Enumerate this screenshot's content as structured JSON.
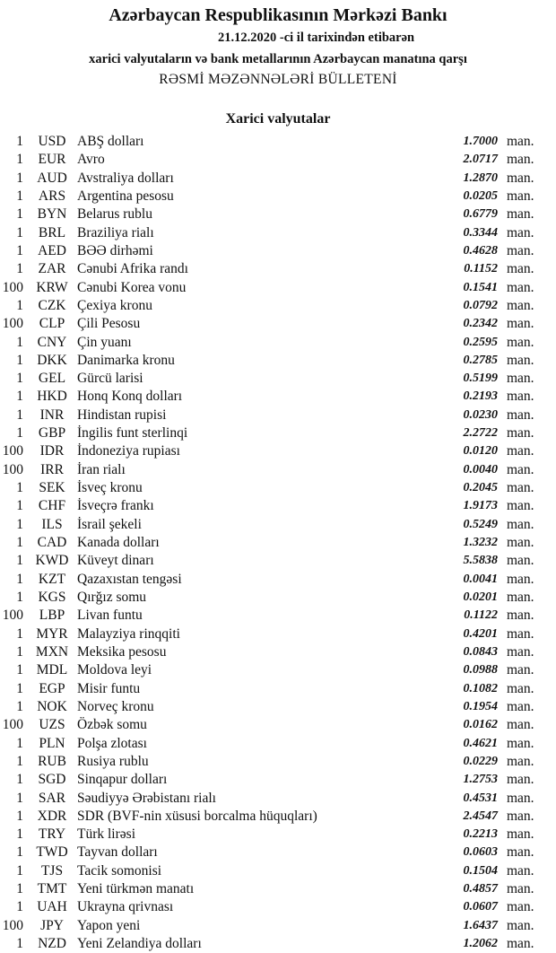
{
  "header": {
    "bank": "Azərbaycan Respublikasının Mərkəzi Bankı",
    "date_line": "21.12.2020  -ci il tarixindən etibarən",
    "subtitle": "xarici valyutaların və bank metallarının Azərbaycan manatına qarşı",
    "bulletin": "RƏSMİ MƏZƏNNƏLƏRİ BÜLLETENİ",
    "section": "Xarici valyutalar"
  },
  "unit": "man.",
  "rows": [
    {
      "amount": "1",
      "code": "USD",
      "name": "ABŞ dolları",
      "rate": "1.7000"
    },
    {
      "amount": "1",
      "code": "EUR",
      "name": "Avro",
      "rate": "2.0717"
    },
    {
      "amount": "1",
      "code": "AUD",
      "name": "Avstraliya dolları",
      "rate": "1.2870"
    },
    {
      "amount": "1",
      "code": "ARS",
      "name": "Argentina pesosu",
      "rate": "0.0205"
    },
    {
      "amount": "1",
      "code": "BYN",
      "name": "Belarus rublu",
      "rate": "0.6779"
    },
    {
      "amount": "1",
      "code": "BRL",
      "name": "Braziliya rialı",
      "rate": "0.3344"
    },
    {
      "amount": "1",
      "code": "AED",
      "name": "BƏƏ dirhəmi",
      "rate": "0.4628"
    },
    {
      "amount": "1",
      "code": "ZAR",
      "name": "Cənubi Afrika randı",
      "rate": "0.1152"
    },
    {
      "amount": "100",
      "code": "KRW",
      "name": "Cənubi Korea vonu",
      "rate": "0.1541"
    },
    {
      "amount": "1",
      "code": "CZK",
      "name": "Çexiya kronu",
      "rate": "0.0792"
    },
    {
      "amount": "100",
      "code": "CLP",
      "name": "Çili Pesosu",
      "rate": "0.2342"
    },
    {
      "amount": "1",
      "code": "CNY",
      "name": "Çin yuanı",
      "rate": "0.2595"
    },
    {
      "amount": "1",
      "code": "DKK",
      "name": "Danimarka kronu",
      "rate": "0.2785"
    },
    {
      "amount": "1",
      "code": "GEL",
      "name": "Gürcü larisi",
      "rate": "0.5199"
    },
    {
      "amount": "1",
      "code": "HKD",
      "name": "Honq Konq dolları",
      "rate": "0.2193"
    },
    {
      "amount": "1",
      "code": "INR",
      "name": "Hindistan rupisi",
      "rate": "0.0230"
    },
    {
      "amount": "1",
      "code": "GBP",
      "name": "İngilis funt sterlinqi",
      "rate": "2.2722"
    },
    {
      "amount": "100",
      "code": "IDR",
      "name": "İndoneziya rupiası",
      "rate": "0.0120"
    },
    {
      "amount": "100",
      "code": "IRR",
      "name": "İran rialı",
      "rate": "0.0040"
    },
    {
      "amount": "1",
      "code": "SEK",
      "name": "İsveç kronu",
      "rate": "0.2045"
    },
    {
      "amount": "1",
      "code": "CHF",
      "name": "İsveçrə frankı",
      "rate": "1.9173"
    },
    {
      "amount": "1",
      "code": "ILS",
      "name": "İsrail şekeli",
      "rate": "0.5249"
    },
    {
      "amount": "1",
      "code": "CAD",
      "name": "Kanada dolları",
      "rate": "1.3232"
    },
    {
      "amount": "1",
      "code": "KWD",
      "name": "Küveyt dinarı",
      "rate": "5.5838"
    },
    {
      "amount": "1",
      "code": "KZT",
      "name": "Qazaxıstan tengəsi",
      "rate": "0.0041"
    },
    {
      "amount": "1",
      "code": "KGS",
      "name": "Qırğız somu",
      "rate": "0.0201"
    },
    {
      "amount": "100",
      "code": "LBP",
      "name": "Livan funtu",
      "rate": "0.1122"
    },
    {
      "amount": "1",
      "code": "MYR",
      "name": "Malayziya rinqqiti",
      "rate": "0.4201"
    },
    {
      "amount": "1",
      "code": "MXN",
      "name": "Meksika pesosu",
      "rate": "0.0843"
    },
    {
      "amount": "1",
      "code": "MDL",
      "name": "Moldova leyi",
      "rate": "0.0988"
    },
    {
      "amount": "1",
      "code": "EGP",
      "name": "Misir funtu",
      "rate": "0.1082"
    },
    {
      "amount": "1",
      "code": "NOK",
      "name": "Norveç kronu",
      "rate": "0.1954"
    },
    {
      "amount": "100",
      "code": "UZS",
      "name": "Özbək somu",
      "rate": "0.0162"
    },
    {
      "amount": "1",
      "code": "PLN",
      "name": "Polşa zlotası",
      "rate": "0.4621"
    },
    {
      "amount": "1",
      "code": "RUB",
      "name": "Rusiya rublu",
      "rate": "0.0229"
    },
    {
      "amount": "1",
      "code": "SGD",
      "name": "Sinqapur dolları",
      "rate": "1.2753"
    },
    {
      "amount": "1",
      "code": "SAR",
      "name": "Səudiyyə Ərəbistanı rialı",
      "rate": "0.4531"
    },
    {
      "amount": "1",
      "code": "XDR",
      "name": "SDR (BVF-nin xüsusi borcalma hüquqları)",
      "rate": "2.4547"
    },
    {
      "amount": "1",
      "code": "TRY",
      "name": "Türk lirəsi",
      "rate": "0.2213"
    },
    {
      "amount": "1",
      "code": "TWD",
      "name": "Tayvan dolları",
      "rate": "0.0603"
    },
    {
      "amount": "1",
      "code": "TJS",
      "name": "Tacik somonisi",
      "rate": "0.1504"
    },
    {
      "amount": "1",
      "code": "TMT",
      "name": "Yeni türkmən manatı",
      "rate": "0.4857"
    },
    {
      "amount": "1",
      "code": "UAH",
      "name": "Ukrayna qrivnası",
      "rate": "0.0607"
    },
    {
      "amount": "100",
      "code": "JPY",
      "name": "Yapon yeni",
      "rate": "1.6437"
    },
    {
      "amount": "1",
      "code": "NZD",
      "name": "Yeni Zelandiya dolları",
      "rate": "1.2062"
    }
  ]
}
